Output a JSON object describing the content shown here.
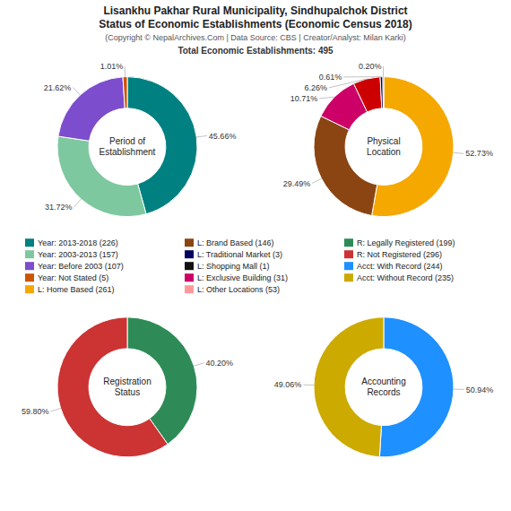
{
  "chart_data": {
    "type": "pie",
    "title": "Lisankhu Pakhar Rural Municipality, Sindhupalchok District\nStatus of Economic Establishments (Economic Census 2018)",
    "subtitle": "(Copyright © NepalArchives.Com | Data Source: CBS | Creator/Analyst: Milan Karki)",
    "annotations": [
      "Total Economic Establishments: 495"
    ],
    "data_labels": true,
    "legend": "center",
    "series": [
      {
        "name": "Period of\nEstablishment",
        "values": [
          45.66,
          31.72,
          21.62,
          1.01
        ],
        "value_labels": [
          "45.66%",
          "31.72%",
          "21.62%",
          "1.01%"
        ],
        "colors": [
          "#008080",
          "#7ec8a0",
          "#7c4dcc",
          "#cc5500"
        ]
      },
      {
        "name": "Physical\nLocation",
        "values": [
          52.73,
          29.49,
          10.71,
          6.26,
          0.61,
          0.2
        ],
        "value_labels": [
          "52.73%",
          "29.49%",
          "10.71%",
          "6.26%",
          "0.61%",
          "0.20%"
        ],
        "colors": [
          "#f5a800",
          "#8b4513",
          "#cc0066",
          "#cc0000",
          "#000060",
          "#111111"
        ]
      },
      {
        "name": "Registration\nStatus",
        "values": [
          40.2,
          59.8
        ],
        "value_labels": [
          "40.20%",
          "59.80%"
        ],
        "colors": [
          "#2e8b57",
          "#cc3333"
        ]
      },
      {
        "name": "Accounting\nRecords",
        "values": [
          50.94,
          49.06
        ],
        "value_labels": [
          "50.94%",
          "49.06%"
        ],
        "colors": [
          "#1e90ff",
          "#ccaa00"
        ]
      }
    ],
    "legend_entries": [
      {
        "name": "Year: 2013-2018 (226)",
        "color": "#008080"
      },
      {
        "name": "Year: 2003-2013 (157)",
        "color": "#7ec8a0"
      },
      {
        "name": "Year: Before 2003 (107)",
        "color": "#7c4dcc"
      },
      {
        "name": "Year: Not Stated (5)",
        "color": "#cc5500"
      },
      {
        "name": "L: Home Based (261)",
        "color": "#f5a800"
      },
      {
        "name": "L: Brand Based (146)",
        "color": "#8b4513"
      },
      {
        "name": "L: Traditional Market (3)",
        "color": "#000060"
      },
      {
        "name": "L: Shopping Mall (1)",
        "color": "#111111"
      },
      {
        "name": "L: Exclusive Building (31)",
        "color": "#cc0066"
      },
      {
        "name": "L: Other Locations (53)",
        "color": "#ff9999"
      },
      {
        "name": "R: Legally Registered (199)",
        "color": "#2e8b57"
      },
      {
        "name": "R: Not Registered (296)",
        "color": "#cc3333"
      },
      {
        "name": "Acct: With Record (244)",
        "color": "#1e90ff"
      },
      {
        "name": "Acct: Without Record (235)",
        "color": "#ccaa00"
      }
    ]
  }
}
